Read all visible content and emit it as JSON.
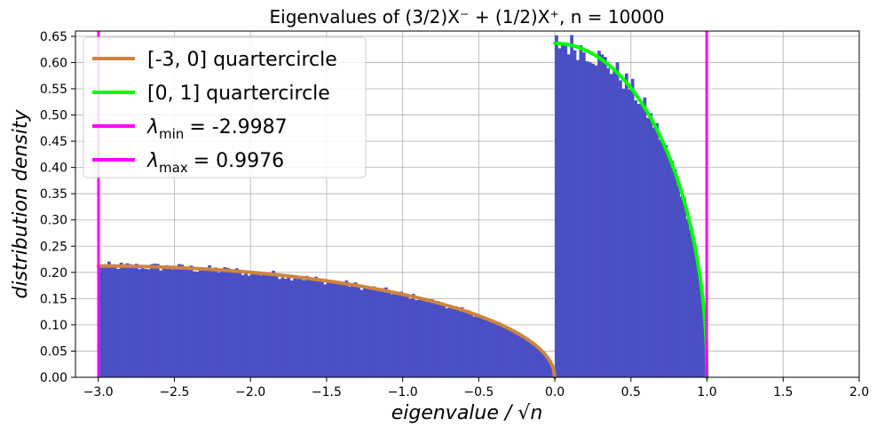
{
  "chart_data": {
    "type": "histogram",
    "title": "Eigenvalues of (3/2)X⁻ + (1/2)X⁺, n = 10000",
    "xlabel": "eigenvalue / √n",
    "ylabel": "distribution density",
    "xlim": [
      -3.15,
      2.0
    ],
    "ylim": [
      0.0,
      0.66
    ],
    "xticks": [
      "−3.0",
      "−2.5",
      "−2.0",
      "−1.5",
      "−1.0",
      "−0.5",
      "0.0",
      "0.5",
      "1.0",
      "1.5",
      "2.0"
    ],
    "yticks": [
      "0.00",
      "0.05",
      "0.10",
      "0.15",
      "0.20",
      "0.25",
      "0.30",
      "0.35",
      "0.40",
      "0.45",
      "0.50",
      "0.55",
      "0.60",
      "0.65"
    ],
    "grid": true,
    "legend_position": "top-left",
    "histogram": {
      "color": "#4b4fc4",
      "bin_width": 0.02,
      "range": [
        -3.0,
        1.0
      ]
    },
    "curves": [
      {
        "name": "[-3, 0] quartercircle",
        "color": "#cd853f",
        "domain": [
          -3.0,
          0.0
        ],
        "formula": "(2/(9π))·sqrt(9 − (x+3)²)"
      },
      {
        "name": "[0, 1] quartercircle",
        "color": "#00ff00",
        "domain": [
          0.0,
          1.0
        ],
        "formula": "(2/π)·sqrt(1 − x²)"
      }
    ],
    "vlines": [
      {
        "label_sym": "λ",
        "label_sub": "min",
        "label_value": "= -2.9987",
        "x": -2.9987,
        "color": "#ff00ff"
      },
      {
        "label_sym": "λ",
        "label_sub": "max",
        "label_value": "= 0.9976",
        "x": 0.9976,
        "color": "#ff00ff"
      }
    ]
  }
}
